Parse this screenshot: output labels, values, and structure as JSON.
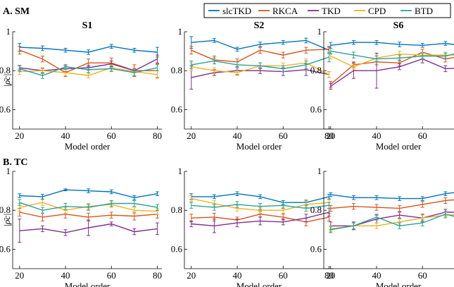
{
  "legend": {
    "entries": [
      {
        "name": "slcTKD",
        "color": "#0072BD"
      },
      {
        "name": "RKCA",
        "color": "#D95319"
      },
      {
        "name": "TKD",
        "color": "#7E2F8E"
      },
      {
        "name": "CPD",
        "color": "#EDB120"
      },
      {
        "name": "BTD",
        "color": "#2AA198"
      }
    ],
    "placement": "top-right"
  },
  "rows": [
    {
      "label": "A. SM"
    },
    {
      "label": "B. TC"
    }
  ],
  "chart_data": [
    {
      "type": "line",
      "row": "A. SM",
      "title": "S1",
      "xlabel": "Model order",
      "ylabel": "|ρ̄c|",
      "x": [
        20,
        30,
        40,
        50,
        60,
        70,
        80
      ],
      "xlim": [
        17,
        82
      ],
      "ylim": [
        0.5,
        1.0
      ],
      "xticks": [
        20,
        40,
        60,
        80
      ],
      "yticks": [
        0.6,
        0.8,
        1.0
      ],
      "ytick_labels": [
        "0.6",
        "0.8",
        "1"
      ],
      "grid": false,
      "error_bars": true,
      "series": [
        {
          "name": "slcTKD",
          "values": [
            0.92,
            0.915,
            0.905,
            0.895,
            0.925,
            0.905,
            0.895
          ],
          "err": [
            0.02,
            0.012,
            0.01,
            0.012,
            0.01,
            0.01,
            0.025
          ]
        },
        {
          "name": "RKCA",
          "values": [
            0.905,
            0.86,
            0.79,
            0.84,
            0.84,
            0.8,
            0.8
          ],
          "err": [
            0.02,
            0.015,
            0.02,
            0.02,
            0.025,
            0.03,
            0.035
          ]
        },
        {
          "name": "TKD",
          "values": [
            0.815,
            0.8,
            0.81,
            0.815,
            0.835,
            0.8,
            0.86
          ],
          "err": [
            0.012,
            0.012,
            0.015,
            0.012,
            0.015,
            0.01,
            0.02
          ]
        },
        {
          "name": "CPD",
          "values": [
            0.795,
            0.8,
            0.79,
            0.775,
            0.815,
            0.795,
            0.78
          ],
          "err": [
            0.015,
            0.015,
            0.015,
            0.012,
            0.015,
            0.02,
            0.02
          ]
        },
        {
          "name": "BTD",
          "values": [
            0.81,
            0.775,
            0.82,
            0.805,
            0.81,
            0.79,
            0.815
          ],
          "err": [
            0.015,
            0.015,
            0.012,
            0.015,
            0.015,
            0.015,
            0.015
          ]
        }
      ]
    },
    {
      "type": "line",
      "row": "A. SM",
      "title": "S2",
      "xlabel": "Model order",
      "ylabel": "",
      "x": [
        20,
        30,
        40,
        50,
        60,
        70,
        80
      ],
      "xlim": [
        17,
        82
      ],
      "ylim": [
        0.5,
        1.0
      ],
      "xticks": [
        20,
        40,
        60,
        80
      ],
      "yticks": [
        0.6,
        0.8,
        1.0
      ],
      "ytick_labels": [
        "0.6",
        "0.8",
        "1"
      ],
      "grid": false,
      "error_bars": true,
      "series": [
        {
          "name": "slcTKD",
          "values": [
            0.945,
            0.955,
            0.91,
            0.935,
            0.945,
            0.955,
            0.905
          ],
          "err": [
            0.03,
            0.01,
            0.01,
            0.012,
            0.01,
            0.012,
            0.015
          ]
        },
        {
          "name": "RKCA",
          "values": [
            0.905,
            0.855,
            0.845,
            0.905,
            0.88,
            0.905,
            0.91
          ],
          "err": [
            0.02,
            0.02,
            0.015,
            0.015,
            0.015,
            0.015,
            0.015
          ]
        },
        {
          "name": "TKD",
          "values": [
            0.765,
            0.79,
            0.8,
            0.8,
            0.795,
            0.805,
            0.78
          ],
          "err": [
            0.06,
            0.015,
            0.02,
            0.015,
            0.02,
            0.03,
            0.015
          ]
        },
        {
          "name": "CPD",
          "values": [
            0.82,
            0.8,
            0.79,
            0.825,
            0.825,
            0.84,
            0.78
          ],
          "err": [
            0.02,
            0.015,
            0.015,
            0.015,
            0.015,
            0.02,
            0.015
          ]
        },
        {
          "name": "BTD",
          "values": [
            0.83,
            0.85,
            0.83,
            0.825,
            0.81,
            0.83,
            0.87
          ],
          "err": [
            0.02,
            0.015,
            0.015,
            0.015,
            0.015,
            0.02,
            0.025
          ]
        }
      ]
    },
    {
      "type": "line",
      "row": "A. SM",
      "title": "S6",
      "xlabel": "Model order",
      "ylabel": "",
      "x": [
        20,
        30,
        40,
        50,
        60,
        70,
        80
      ],
      "xlim": [
        17,
        82
      ],
      "ylim": [
        0.5,
        1.0
      ],
      "xticks": [
        20,
        40,
        60,
        80
      ],
      "yticks": [
        0.6,
        0.8,
        1.0
      ],
      "ytick_labels": [
        "0.6",
        "0.8",
        "1"
      ],
      "grid": false,
      "error_bars": true,
      "series": [
        {
          "name": "slcTKD",
          "values": [
            0.93,
            0.945,
            0.945,
            0.935,
            0.93,
            0.94,
            0.925
          ],
          "err": [
            0.015,
            0.01,
            0.01,
            0.012,
            0.01,
            0.01,
            0.012
          ]
        },
        {
          "name": "RKCA",
          "values": [
            0.73,
            0.83,
            0.845,
            0.84,
            0.895,
            0.86,
            0.88
          ],
          "err": [
            0.015,
            0.015,
            0.015,
            0.015,
            0.015,
            0.015,
            0.015
          ]
        },
        {
          "name": "TKD",
          "values": [
            0.72,
            0.8,
            0.8,
            0.82,
            0.86,
            0.81,
            0.815
          ],
          "err": [
            0.015,
            0.04,
            0.09,
            0.015,
            0.02,
            0.015,
            0.015
          ]
        },
        {
          "name": "CPD",
          "values": [
            0.875,
            0.82,
            0.865,
            0.885,
            0.88,
            0.88,
            0.88
          ],
          "err": [
            0.015,
            0.015,
            0.015,
            0.015,
            0.015,
            0.015,
            0.015
          ]
        },
        {
          "name": "BTD",
          "values": [
            0.9,
            0.88,
            0.86,
            0.865,
            0.875,
            0.875,
            0.905
          ],
          "err": [
            0.015,
            0.015,
            0.015,
            0.015,
            0.015,
            0.015,
            0.015
          ]
        }
      ]
    },
    {
      "type": "line",
      "row": "B. TC",
      "title": "",
      "xlabel": "Model order",
      "ylabel": "|ρ̄c|",
      "x": [
        20,
        30,
        40,
        50,
        60,
        70,
        80
      ],
      "xlim": [
        17,
        82
      ],
      "ylim": [
        0.5,
        1.0
      ],
      "xticks": [
        20,
        40,
        60,
        80
      ],
      "yticks": [
        0.6,
        0.8,
        1.0
      ],
      "ytick_labels": [
        "0.6",
        "0.8",
        "1"
      ],
      "grid": false,
      "error_bars": true,
      "series": [
        {
          "name": "slcTKD",
          "values": [
            0.875,
            0.87,
            0.905,
            0.9,
            0.895,
            0.865,
            0.885
          ],
          "err": [
            0.01,
            0.012,
            0.005,
            0.01,
            0.01,
            0.01,
            0.01
          ]
        },
        {
          "name": "RKCA",
          "values": [
            0.79,
            0.765,
            0.78,
            0.765,
            0.775,
            0.77,
            0.78
          ],
          "err": [
            0.02,
            0.02,
            0.02,
            0.02,
            0.015,
            0.02,
            0.02
          ]
        },
        {
          "name": "TKD",
          "values": [
            0.695,
            0.705,
            0.685,
            0.71,
            0.73,
            0.69,
            0.705
          ],
          "err": [
            0.06,
            0.015,
            0.015,
            0.04,
            0.01,
            0.015,
            0.03
          ]
        },
        {
          "name": "CPD",
          "values": [
            0.815,
            0.84,
            0.8,
            0.82,
            0.83,
            0.8,
            0.795
          ],
          "err": [
            0.02,
            0.015,
            0.015,
            0.015,
            0.015,
            0.015,
            0.015
          ]
        },
        {
          "name": "BTD",
          "values": [
            0.84,
            0.8,
            0.82,
            0.815,
            0.835,
            0.835,
            0.815
          ],
          "err": [
            0.015,
            0.015,
            0.015,
            0.015,
            0.015,
            0.015,
            0.015
          ]
        }
      ]
    },
    {
      "type": "line",
      "row": "B. TC",
      "title": "",
      "xlabel": "Model order",
      "ylabel": "",
      "x": [
        20,
        30,
        40,
        50,
        60,
        70,
        80
      ],
      "xlim": [
        17,
        82
      ],
      "ylim": [
        0.5,
        1.0
      ],
      "xticks": [
        20,
        40,
        60,
        80
      ],
      "yticks": [
        0.6,
        0.8,
        1.0
      ],
      "ytick_labels": [
        "0.6",
        "0.8",
        "1"
      ],
      "grid": false,
      "error_bars": true,
      "series": [
        {
          "name": "slcTKD",
          "values": [
            0.87,
            0.87,
            0.885,
            0.87,
            0.84,
            0.84,
            0.87
          ],
          "err": [
            0.015,
            0.01,
            0.01,
            0.01,
            0.01,
            0.012,
            0.012
          ]
        },
        {
          "name": "RKCA",
          "values": [
            0.76,
            0.765,
            0.75,
            0.78,
            0.765,
            0.74,
            0.765
          ],
          "err": [
            0.02,
            0.02,
            0.015,
            0.015,
            0.015,
            0.02,
            0.02
          ]
        },
        {
          "name": "TKD",
          "values": [
            0.73,
            0.72,
            0.735,
            0.745,
            0.74,
            0.76,
            0.79
          ],
          "err": [
            0.015,
            0.035,
            0.02,
            0.02,
            0.015,
            0.02,
            0.02
          ]
        },
        {
          "name": "CPD",
          "values": [
            0.86,
            0.835,
            0.81,
            0.8,
            0.8,
            0.83,
            0.84
          ],
          "err": [
            0.015,
            0.015,
            0.015,
            0.015,
            0.015,
            0.015,
            0.015
          ]
        },
        {
          "name": "BTD",
          "values": [
            0.825,
            0.815,
            0.83,
            0.82,
            0.825,
            0.81,
            0.825
          ],
          "err": [
            0.015,
            0.015,
            0.015,
            0.015,
            0.015,
            0.015,
            0.015
          ]
        }
      ]
    },
    {
      "type": "line",
      "row": "B. TC",
      "title": "",
      "xlabel": "Model order",
      "ylabel": "",
      "x": [
        20,
        30,
        40,
        50,
        60,
        70,
        80
      ],
      "xlim": [
        17,
        82
      ],
      "ylim": [
        0.5,
        1.0
      ],
      "xticks": [
        20,
        40,
        60,
        80
      ],
      "yticks": [
        0.6,
        0.8,
        1.0
      ],
      "ytick_labels": [
        "0.6",
        "0.8",
        "1"
      ],
      "grid": false,
      "error_bars": true,
      "series": [
        {
          "name": "slcTKD",
          "values": [
            0.88,
            0.865,
            0.865,
            0.86,
            0.86,
            0.885,
            0.9
          ],
          "err": [
            0.01,
            0.01,
            0.01,
            0.01,
            0.01,
            0.01,
            0.01
          ]
        },
        {
          "name": "RKCA",
          "values": [
            0.81,
            0.82,
            0.815,
            0.81,
            0.83,
            0.85,
            0.86
          ],
          "err": [
            0.015,
            0.015,
            0.015,
            0.015,
            0.015,
            0.015,
            0.015
          ]
        },
        {
          "name": "TKD",
          "values": [
            0.72,
            0.72,
            0.755,
            0.775,
            0.76,
            0.79,
            0.79
          ],
          "err": [
            0.02,
            0.02,
            0.02,
            0.015,
            0.02,
            0.015,
            0.02
          ]
        },
        {
          "name": "CPD",
          "values": [
            0.705,
            0.72,
            0.72,
            0.74,
            0.76,
            0.775,
            0.78
          ],
          "err": [
            0.015,
            0.015,
            0.015,
            0.015,
            0.015,
            0.015,
            0.015
          ]
        },
        {
          "name": "BTD",
          "values": [
            0.7,
            0.72,
            0.765,
            0.72,
            0.735,
            0.78,
            0.75
          ],
          "err": [
            0.015,
            0.015,
            0.015,
            0.015,
            0.015,
            0.015,
            0.015
          ]
        }
      ]
    }
  ]
}
